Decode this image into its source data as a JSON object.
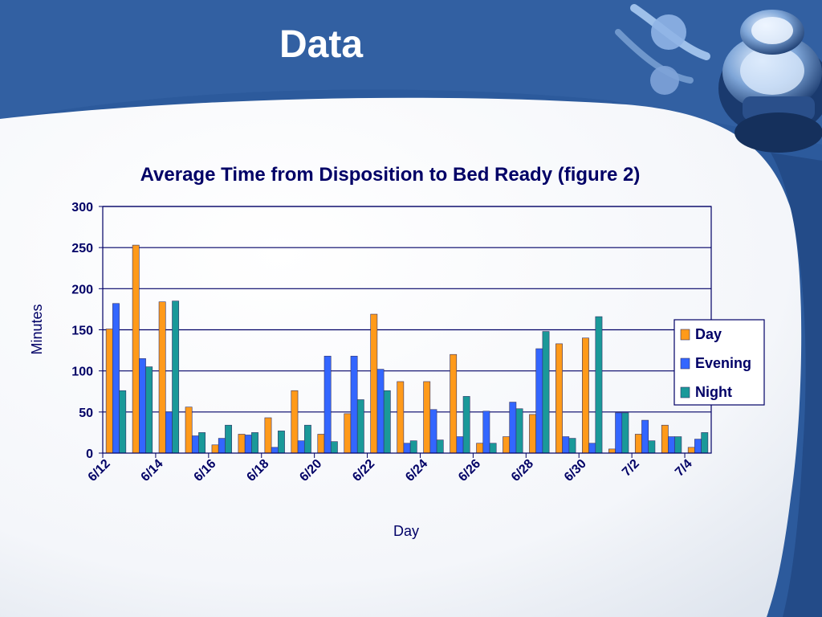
{
  "slide": {
    "title": "Data",
    "colors": {
      "background": "#2c5a9c",
      "panel": "#ffffff",
      "accent_dark": "#1d3f78"
    }
  },
  "stethoscope_image": "stethoscope-icon",
  "chart_data": {
    "type": "bar",
    "title": "Average Time from Disposition to Bed Ready (figure 2)",
    "xlabel": "Day",
    "ylabel": "Minutes",
    "ylim": [
      0,
      300
    ],
    "yticks": [
      0,
      50,
      100,
      150,
      200,
      250,
      300
    ],
    "grid": true,
    "legend_position": "right",
    "categories": [
      "6/12",
      "6/13",
      "6/14",
      "6/15",
      "6/16",
      "6/17",
      "6/18",
      "6/19",
      "6/20",
      "6/21",
      "6/22",
      "6/23",
      "6/24",
      "6/25",
      "6/26",
      "6/27",
      "6/28",
      "6/29",
      "6/30",
      "7/1",
      "7/2",
      "7/3",
      "7/4"
    ],
    "xtick_labels": [
      "6/12",
      "6/14",
      "6/16",
      "6/18",
      "6/20",
      "6/22",
      "6/24",
      "6/26",
      "6/28",
      "6/30",
      "7/2",
      "7/4"
    ],
    "series": [
      {
        "name": "Day",
        "color": "#ff9a1a",
        "values": [
          151,
          253,
          184,
          56,
          10,
          23,
          43,
          76,
          23,
          48,
          169,
          87,
          87,
          120,
          12,
          20,
          47,
          133,
          140,
          5,
          23,
          34,
          7
        ]
      },
      {
        "name": "Evening",
        "color": "#3366ff",
        "values": [
          182,
          115,
          50,
          21,
          18,
          22,
          7,
          15,
          118,
          118,
          102,
          12,
          53,
          20,
          51,
          62,
          127,
          20,
          12,
          49,
          40,
          20,
          17
        ]
      },
      {
        "name": "Night",
        "color": "#1a9999",
        "values": [
          76,
          105,
          185,
          25,
          34,
          25,
          27,
          34,
          14,
          65,
          76,
          15,
          16,
          69,
          12,
          54,
          148,
          18,
          166,
          49,
          15,
          20,
          25
        ]
      }
    ]
  }
}
